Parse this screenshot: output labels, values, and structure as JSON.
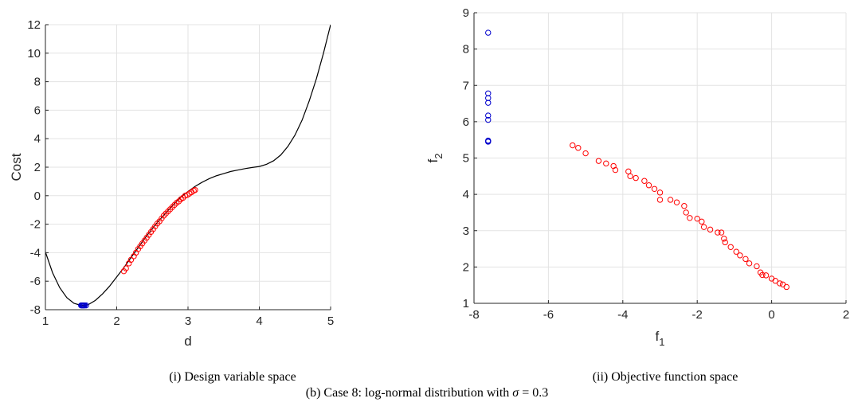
{
  "chart_data": [
    {
      "type": "scatter",
      "caption": "(i) Design variable space",
      "xlabel": "d",
      "ylabel": "Cost",
      "xlim": [
        1,
        5
      ],
      "ylim": [
        -8,
        12
      ],
      "xticks": [
        "1",
        "2",
        "3",
        "4",
        "5"
      ],
      "yticks": [
        "-8",
        "-6",
        "-4",
        "-2",
        "0",
        "2",
        "4",
        "6",
        "8",
        "10",
        "12"
      ],
      "grid": true,
      "curve": {
        "color": "#000000",
        "x": [
          1.0,
          1.1,
          1.2,
          1.3,
          1.4,
          1.5,
          1.55,
          1.6,
          1.7,
          1.8,
          1.9,
          2.0,
          2.1,
          2.2,
          2.3,
          2.4,
          2.5,
          2.6,
          2.7,
          2.8,
          2.9,
          3.0,
          3.1,
          3.2,
          3.3,
          3.4,
          3.5,
          3.6,
          3.7,
          3.8,
          3.9,
          4.0,
          4.1,
          4.2,
          4.3,
          4.4,
          4.5,
          4.6,
          4.7,
          4.8,
          4.9,
          5.0
        ],
        "y": [
          -3.95,
          -5.4,
          -6.45,
          -7.15,
          -7.55,
          -7.7,
          -7.7,
          -7.65,
          -7.35,
          -6.9,
          -6.35,
          -5.7,
          -5.05,
          -4.35,
          -3.65,
          -2.95,
          -2.3,
          -1.7,
          -1.15,
          -0.6,
          -0.1,
          0.3,
          0.65,
          0.95,
          1.2,
          1.4,
          1.55,
          1.7,
          1.8,
          1.9,
          1.98,
          2.05,
          2.2,
          2.45,
          2.85,
          3.45,
          4.25,
          5.3,
          6.65,
          8.2,
          10.0,
          12.0
        ]
      },
      "series": [
        {
          "color": "#0000cc",
          "marker": "circle",
          "x": [
            1.5,
            1.51,
            1.52,
            1.53,
            1.54,
            1.55,
            1.57
          ],
          "y": [
            -7.7,
            -7.7,
            -7.7,
            -7.7,
            -7.7,
            -7.7,
            -7.7
          ]
        },
        {
          "color": "#ff0000",
          "marker": "circle",
          "x": [
            2.1,
            2.13,
            2.17,
            2.2,
            2.24,
            2.27,
            2.3,
            2.33,
            2.36,
            2.39,
            2.42,
            2.45,
            2.48,
            2.51,
            2.54,
            2.57,
            2.6,
            2.63,
            2.66,
            2.69,
            2.72,
            2.75,
            2.78,
            2.81,
            2.84,
            2.87,
            2.9,
            2.93,
            2.96,
            2.99,
            3.02,
            3.05,
            3.08,
            3.1
          ],
          "y": [
            -5.3,
            -5.1,
            -4.75,
            -4.5,
            -4.25,
            -4.0,
            -3.75,
            -3.55,
            -3.35,
            -3.15,
            -2.95,
            -2.75,
            -2.55,
            -2.35,
            -2.15,
            -1.95,
            -1.8,
            -1.6,
            -1.4,
            -1.25,
            -1.1,
            -0.95,
            -0.8,
            -0.65,
            -0.5,
            -0.4,
            -0.25,
            -0.15,
            0.0,
            0.05,
            0.15,
            0.25,
            0.35,
            0.4
          ]
        }
      ]
    },
    {
      "type": "scatter",
      "caption": "(ii) Objective function space",
      "xlabel": "f",
      "xlabel_sub": "1",
      "ylabel": "f",
      "ylabel_sub": "2",
      "xlim": [
        -8,
        2
      ],
      "ylim": [
        1,
        9
      ],
      "xticks": [
        "-8",
        "-6",
        "-4",
        "-2",
        "0",
        "2"
      ],
      "yticks": [
        "1",
        "2",
        "3",
        "4",
        "5",
        "6",
        "7",
        "8",
        "9"
      ],
      "grid": true,
      "series": [
        {
          "color": "#0000cc",
          "marker": "circle",
          "x": [
            -7.62,
            -7.62,
            -7.62,
            -7.62,
            -7.62,
            -7.62,
            -7.62,
            -7.62,
            -7.62
          ],
          "y": [
            8.45,
            6.78,
            6.65,
            6.52,
            6.17,
            6.05,
            5.48,
            5.47,
            5.45
          ]
        },
        {
          "color": "#ff0000",
          "marker": "circle",
          "x": [
            -5.35,
            -5.2,
            -5.0,
            -4.65,
            -4.45,
            -4.25,
            -4.2,
            -3.85,
            -3.8,
            -3.65,
            -3.42,
            -3.3,
            -3.15,
            -3.0,
            -3.0,
            -2.72,
            -2.55,
            -2.35,
            -2.3,
            -2.2,
            -2.0,
            -1.88,
            -1.82,
            -1.65,
            -1.45,
            -1.35,
            -1.28,
            -1.25,
            -1.1,
            -0.95,
            -0.85,
            -0.7,
            -0.6,
            -0.4,
            -0.3,
            -0.25,
            -0.15,
            0.0,
            0.1,
            0.22,
            0.3,
            0.4
          ],
          "y": [
            5.35,
            5.28,
            5.13,
            4.92,
            4.85,
            4.78,
            4.67,
            4.63,
            4.5,
            4.45,
            4.37,
            4.25,
            4.15,
            4.05,
            3.85,
            3.85,
            3.78,
            3.68,
            3.5,
            3.35,
            3.33,
            3.25,
            3.1,
            3.03,
            2.95,
            2.95,
            2.78,
            2.68,
            2.55,
            2.42,
            2.32,
            2.22,
            2.1,
            2.02,
            1.85,
            1.78,
            1.77,
            1.68,
            1.62,
            1.55,
            1.52,
            1.45
          ]
        }
      ]
    }
  ],
  "figure_caption_prefix": "(b) Case 8: log-normal distribution with ",
  "figure_caption_sigma": "σ",
  "figure_caption_suffix": " = 0.3"
}
